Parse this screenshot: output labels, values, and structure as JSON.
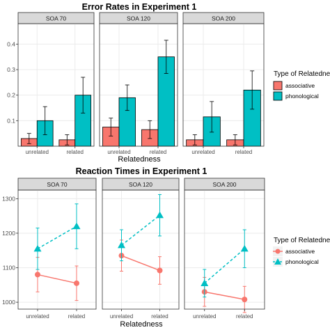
{
  "colors": {
    "associative": "#F8766D",
    "phonological": "#00BFC4",
    "strip_bg": "#D9D9D9",
    "grid": "#EBEBEB",
    "panel_border": "#333333"
  },
  "chart_data": [
    {
      "type": "bar",
      "title": "Error Rates in Experiment 1",
      "xlabel": "Relatedness",
      "ylabel": "",
      "ylim": [
        0,
        0.48
      ],
      "yticks": [
        0.1,
        0.2,
        0.3,
        0.4
      ],
      "ytick_labels": [
        "0.1",
        "0.2",
        "0.3",
        "0.4"
      ],
      "categories": [
        "unrelated",
        "related"
      ],
      "facets": [
        "SOA 70",
        "SOA 120",
        "SOA 200"
      ],
      "legend": {
        "title": "Type of Relatedness",
        "position": "right",
        "entries": [
          "associative",
          "phonological"
        ]
      },
      "series": [
        {
          "name": "associative",
          "values": [
            [
              0.03,
              0.025
            ],
            [
              0.075,
              0.065
            ],
            [
              0.025,
              0.025
            ]
          ],
          "errors": [
            [
              0.02,
              0.02
            ],
            [
              0.035,
              0.035
            ],
            [
              0.02,
              0.02
            ]
          ]
        },
        {
          "name": "phonological",
          "values": [
            [
              0.1,
              0.2
            ],
            [
              0.19,
              0.35
            ],
            [
              0.115,
              0.22
            ]
          ],
          "errors": [
            [
              0.055,
              0.07
            ],
            [
              0.05,
              0.065
            ],
            [
              0.06,
              0.075
            ]
          ]
        }
      ]
    },
    {
      "type": "line",
      "title": "Reaction Times in Experiment 1",
      "xlabel": "Relatedness",
      "ylabel": "",
      "ylim": [
        980,
        1325
      ],
      "yticks": [
        1000,
        1100,
        1200,
        1300
      ],
      "ytick_labels": [
        "1000",
        "1100",
        "1200",
        "1300"
      ],
      "categories": [
        "unrelated",
        "related"
      ],
      "facets": [
        "SOA 70",
        "SOA 120",
        "SOA 200"
      ],
      "legend": {
        "title": "Type of Relatedness",
        "position": "right",
        "entries": [
          "associative",
          "phonological"
        ]
      },
      "series": [
        {
          "name": "associative",
          "marker": "circle",
          "line": "solid",
          "values": [
            [
              1080,
              1055
            ],
            [
              1135,
              1092
            ],
            [
              1030,
              1008
            ]
          ],
          "errors": [
            [
              50,
              50
            ],
            [
              45,
              40
            ],
            [
              42,
              38
            ]
          ]
        },
        {
          "name": "phonological",
          "marker": "triangle",
          "line": "dashed",
          "values": [
            [
              1155,
              1220
            ],
            [
              1165,
              1252
            ],
            [
              1055,
              1155
            ]
          ],
          "errors": [
            [
              60,
              65
            ],
            [
              45,
              60
            ],
            [
              40,
              55
            ]
          ]
        }
      ]
    }
  ]
}
